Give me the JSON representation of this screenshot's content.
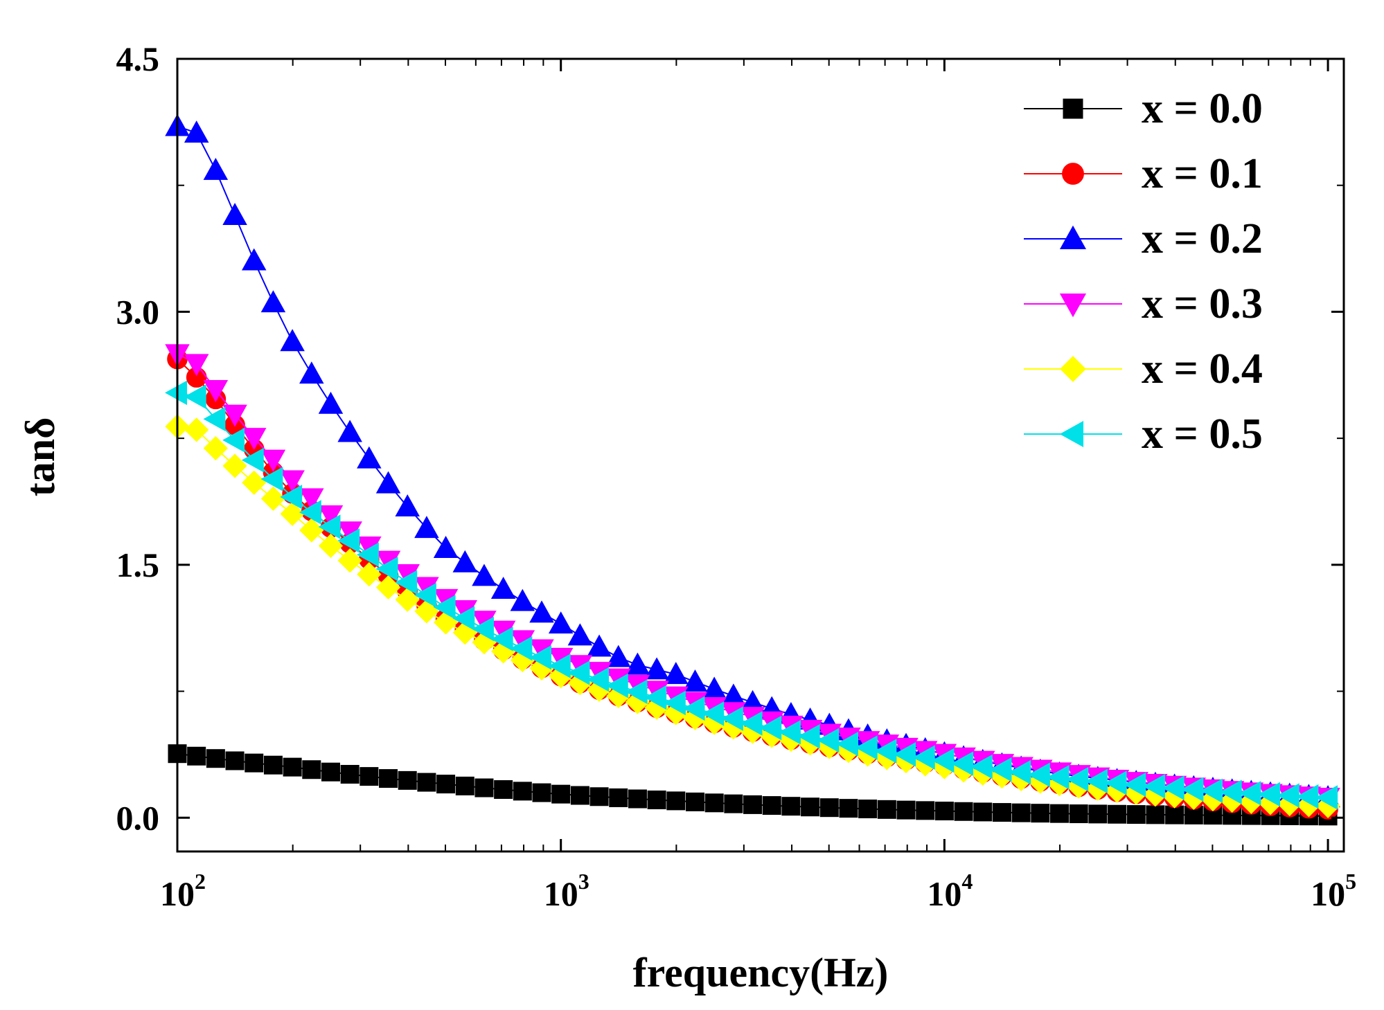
{
  "chart_data": {
    "type": "line",
    "title": "",
    "xlabel": "frequency(Hz)",
    "ylabel": "tanδ",
    "xscale": "log",
    "xlim": [
      100,
      110000
    ],
    "ylim": [
      -0.2,
      4.5
    ],
    "yticks": [
      "0.0",
      "1.5",
      "3.0",
      "4.5"
    ],
    "ytick_values": [
      0.0,
      1.5,
      3.0,
      4.5
    ],
    "xticks": [
      {
        "base": "10",
        "exp": "2",
        "value": 100
      },
      {
        "base": "10",
        "exp": "3",
        "value": 1000
      },
      {
        "base": "10",
        "exp": "4",
        "value": 10000
      },
      {
        "base": "10",
        "exp": "5",
        "value": 100000
      }
    ],
    "grid": false,
    "legend_position": "top-right",
    "frequency_range": [
      100,
      100000
    ],
    "points_per_series": 61,
    "series": [
      {
        "name": "x = 0.0",
        "color": "#000000",
        "marker": "square",
        "anchors": [
          [
            100,
            0.38
          ],
          [
            200,
            0.3
          ],
          [
            500,
            0.2
          ],
          [
            1000,
            0.14
          ],
          [
            2000,
            0.1
          ],
          [
            5000,
            0.06
          ],
          [
            10000,
            0.04
          ],
          [
            20000,
            0.025
          ],
          [
            50000,
            0.015
          ],
          [
            100000,
            0.01
          ]
        ]
      },
      {
        "name": "x = 0.1",
        "color": "#ff0000",
        "marker": "circle",
        "anchors": [
          [
            100,
            2.72
          ],
          [
            120,
            2.55
          ],
          [
            200,
            1.92
          ],
          [
            300,
            1.58
          ],
          [
            500,
            1.18
          ],
          [
            1000,
            0.84
          ],
          [
            2000,
            0.62
          ],
          [
            5000,
            0.42
          ],
          [
            10000,
            0.31
          ],
          [
            20000,
            0.2
          ],
          [
            50000,
            0.1
          ],
          [
            100000,
            0.05
          ]
        ]
      },
      {
        "name": "x = 0.2",
        "color": "#0000ff",
        "marker": "triangle-up",
        "anchors": [
          [
            100,
            4.1
          ],
          [
            110,
            4.1
          ],
          [
            130,
            3.78
          ],
          [
            200,
            2.82
          ],
          [
            300,
            2.2
          ],
          [
            500,
            1.6
          ],
          [
            1000,
            1.15
          ],
          [
            1500,
            0.92
          ],
          [
            2000,
            0.85
          ],
          [
            5000,
            0.55
          ],
          [
            10000,
            0.38
          ],
          [
            20000,
            0.26
          ],
          [
            50000,
            0.17
          ],
          [
            100000,
            0.12
          ]
        ]
      },
      {
        "name": "x = 0.3",
        "color": "#ff00ff",
        "marker": "triangle-down",
        "anchors": [
          [
            100,
            2.75
          ],
          [
            110,
            2.72
          ],
          [
            200,
            2.0
          ],
          [
            300,
            1.65
          ],
          [
            500,
            1.3
          ],
          [
            1000,
            0.95
          ],
          [
            2000,
            0.72
          ],
          [
            5000,
            0.5
          ],
          [
            10000,
            0.38
          ],
          [
            20000,
            0.27
          ],
          [
            50000,
            0.17
          ],
          [
            100000,
            0.12
          ]
        ]
      },
      {
        "name": "x = 0.4",
        "color": "#ffff00",
        "marker": "diamond",
        "anchors": [
          [
            100,
            2.32
          ],
          [
            110,
            2.32
          ],
          [
            200,
            1.8
          ],
          [
            300,
            1.48
          ],
          [
            500,
            1.16
          ],
          [
            1000,
            0.84
          ],
          [
            2000,
            0.62
          ],
          [
            5000,
            0.42
          ],
          [
            10000,
            0.3
          ],
          [
            20000,
            0.2
          ],
          [
            50000,
            0.11
          ],
          [
            100000,
            0.07
          ]
        ]
      },
      {
        "name": "x = 0.5",
        "color": "#00e0e8",
        "marker": "triangle-left",
        "anchors": [
          [
            100,
            2.52
          ],
          [
            110,
            2.52
          ],
          [
            200,
            1.9
          ],
          [
            300,
            1.6
          ],
          [
            500,
            1.25
          ],
          [
            1000,
            0.9
          ],
          [
            2000,
            0.68
          ],
          [
            5000,
            0.46
          ],
          [
            10000,
            0.34
          ],
          [
            20000,
            0.24
          ],
          [
            50000,
            0.16
          ],
          [
            100000,
            0.12
          ]
        ]
      }
    ]
  }
}
